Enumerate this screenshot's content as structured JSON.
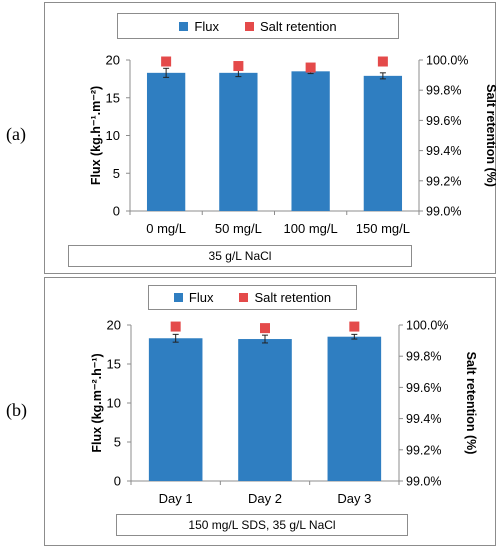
{
  "panels": [
    {
      "label": "(a)",
      "legend": {
        "flux": "Flux",
        "salt": "Salt retention"
      },
      "caption": "35 g/L NaCl",
      "chart_data": {
        "type": "bar",
        "categories": [
          "0 mg/L",
          "50 mg/L",
          "100 mg/L",
          "150 mg/L"
        ],
        "series": [
          {
            "name": "Flux",
            "type": "bar",
            "values": [
              18.3,
              18.3,
              18.5,
              17.9
            ],
            "errors": [
              0.6,
              0.5,
              0.3,
              0.4
            ],
            "color": "#2f7ec1"
          },
          {
            "name": "Salt retention",
            "type": "scatter",
            "values": [
              99.99,
              99.96,
              99.95,
              99.99
            ],
            "color": "#e44a4a"
          }
        ],
        "ylabel": "Flux (kg.h⁻¹.m⁻²)",
        "y2label": "Salt retention (%)",
        "ylim": [
          0,
          20
        ],
        "y2lim": [
          99.0,
          100.0
        ],
        "yticks": [
          "0",
          "5",
          "10",
          "15",
          "20"
        ],
        "y2ticks": [
          "99.0%",
          "99.2%",
          "99.4%",
          "99.6%",
          "99.8%",
          "100.0%"
        ],
        "legend_position": "top"
      }
    },
    {
      "label": "(b)",
      "legend": {
        "flux": "Flux",
        "salt": "Salt retention"
      },
      "caption": "150 mg/L SDS, 35 g/L NaCl",
      "chart_data": {
        "type": "bar",
        "categories": [
          "Day 1",
          "Day 2",
          "Day 3"
        ],
        "series": [
          {
            "name": "Flux",
            "type": "bar",
            "values": [
              18.3,
              18.2,
              18.5
            ],
            "errors": [
              0.5,
              0.5,
              0.3
            ],
            "color": "#2f7ec1"
          },
          {
            "name": "Salt retention",
            "type": "scatter",
            "values": [
              99.99,
              99.98,
              99.99
            ],
            "color": "#e44a4a"
          }
        ],
        "ylabel": "Flux (kg.m⁻².h⁻¹)",
        "y2label": "Salt retention (%)",
        "ylim": [
          0,
          20
        ],
        "y2lim": [
          99.0,
          100.0
        ],
        "yticks": [
          "0",
          "5",
          "10",
          "15",
          "20"
        ],
        "y2ticks": [
          "99.0%",
          "99.2%",
          "99.4%",
          "99.6%",
          "99.8%",
          "100.0%"
        ],
        "legend_position": "top"
      }
    }
  ]
}
